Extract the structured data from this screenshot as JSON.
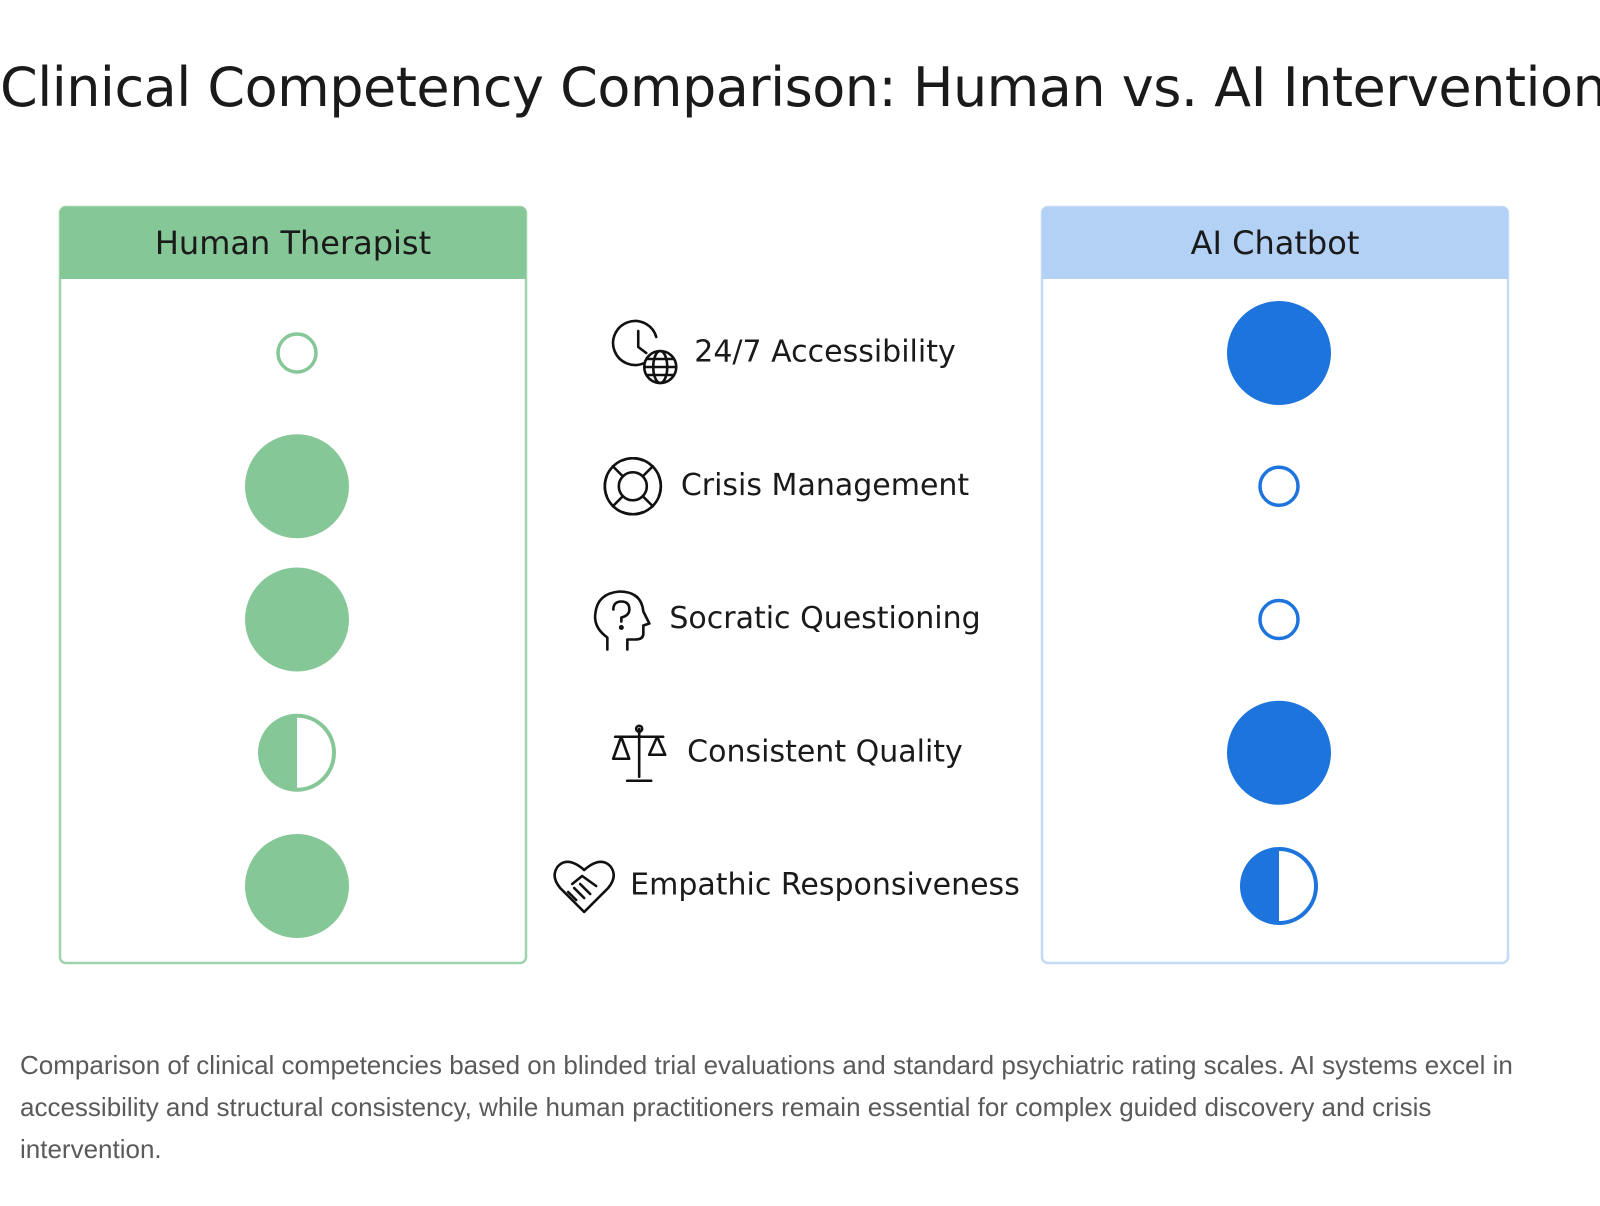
{
  "title": "Clinical Competency Comparison: Human vs. AI Interventions",
  "criteria": [
    "24/7 Accessibility",
    "Crisis Management",
    "Socratic Questioning",
    "Consistent Quality",
    "Empathic Responsiveness"
  ],
  "columns": [
    {
      "header": "Human Therapist",
      "header_color": "#86c798",
      "border_color": "#9fd3ad",
      "color": "#86c798",
      "ratings": [
        0,
        1,
        1,
        0.5,
        1
      ]
    },
    {
      "header": "AI Chatbot",
      "header_color": "#b3d0f5",
      "border_color": "#c5daf4",
      "color": "#1e74dd",
      "ratings": [
        1,
        0,
        0,
        1,
        0.5
      ]
    }
  ],
  "caption": "Comparison of clinical competencies based on blinded trial evaluations and standard psychiatric rating scales. AI systems excel in accessibility and structural consistency, while human practitioners remain essential for complex guided discovery and crisis intervention."
}
